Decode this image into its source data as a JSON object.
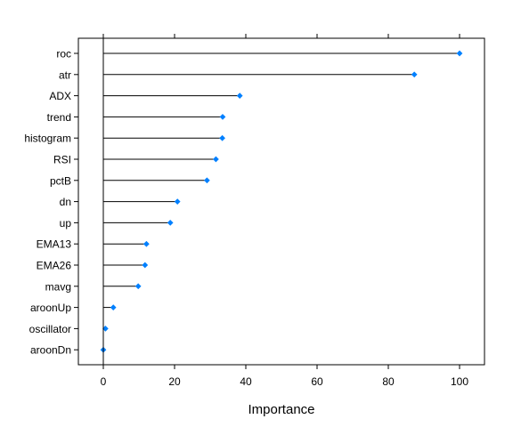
{
  "chart_data": {
    "type": "dotplot",
    "xlabel": "Importance",
    "xlim": [
      -7,
      107
    ],
    "x_ticks": [
      0,
      20,
      40,
      60,
      80,
      100
    ],
    "x_tick_labels": [
      "0",
      "20",
      "40",
      "60",
      "80",
      "100"
    ],
    "grid": false,
    "categories": [
      "roc",
      "atr",
      "ADX",
      "trend",
      "histogram",
      "RSI",
      "pctB",
      "dn",
      "up",
      "EMA13",
      "EMA26",
      "mavg",
      "aroonUp",
      "oscillator",
      "aroonDn"
    ],
    "values": [
      100,
      87.3,
      38.3,
      33.5,
      33.4,
      31.6,
      29.1,
      20.8,
      18.8,
      12.1,
      11.7,
      9.8,
      2.8,
      0.6,
      0
    ],
    "point_color": "#0080FF",
    "stem_color": "#000000",
    "zero_line": true
  }
}
